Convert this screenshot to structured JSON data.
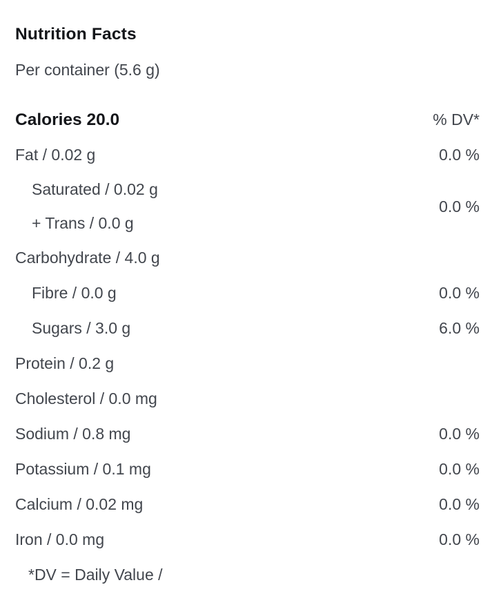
{
  "label": {
    "title": "Nutrition Facts",
    "serving": "Per container (5.6 g)",
    "calories": "Calories 20.0",
    "dv_header": "% DV*",
    "rows": [
      {
        "type": "item",
        "label": "Fat / 0.02 g",
        "dv": "0.0 %",
        "indent": false
      },
      {
        "type": "group",
        "lines": [
          "Saturated / 0.02 g",
          "+ Trans / 0.0 g"
        ],
        "dv": "0.0 %"
      },
      {
        "type": "item",
        "label": "Carbohydrate / 4.0 g",
        "dv": "",
        "indent": false
      },
      {
        "type": "item",
        "label": "Fibre / 0.0 g",
        "dv": "0.0 %",
        "indent": true
      },
      {
        "type": "item",
        "label": "Sugars / 3.0 g",
        "dv": "6.0 %",
        "indent": true
      },
      {
        "type": "item",
        "label": "Protein / 0.2 g",
        "dv": "",
        "indent": false
      },
      {
        "type": "item",
        "label": "Cholesterol / 0.0 mg",
        "dv": "",
        "indent": false
      },
      {
        "type": "item",
        "label": "Sodium / 0.8 mg",
        "dv": "0.0 %",
        "indent": false
      },
      {
        "type": "item",
        "label": "Potassium / 0.1 mg",
        "dv": "0.0 %",
        "indent": false
      },
      {
        "type": "item",
        "label": "Calcium / 0.02 mg",
        "dv": "0.0 %",
        "indent": false
      },
      {
        "type": "item",
        "label": "Iron / 0.0 mg",
        "dv": "0.0 %",
        "indent": false
      }
    ],
    "footnote": "*DV = Daily Value /",
    "colors": {
      "heading": "#14161a",
      "body_text": "#42464d",
      "background": "#ffffff"
    }
  }
}
